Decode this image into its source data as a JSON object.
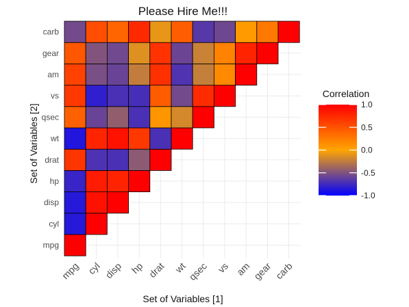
{
  "chart_data": {
    "type": "heatmap",
    "title": "Please Hire Me!!!",
    "xlabel": "Set of Variables [1]",
    "ylabel": "Set of Variables [2]",
    "variables": [
      "mpg",
      "cyl",
      "disp",
      "hp",
      "drat",
      "wt",
      "qsec",
      "vs",
      "am",
      "gear",
      "carb"
    ],
    "matrix": [
      [
        1.0,
        -0.85,
        -0.85,
        -0.78,
        0.68,
        -0.87,
        0.42,
        0.66,
        0.6,
        0.48,
        -0.55
      ],
      [
        -0.85,
        1.0,
        0.9,
        0.83,
        -0.7,
        0.78,
        -0.59,
        -0.81,
        -0.52,
        -0.49,
        0.53
      ],
      [
        -0.85,
        0.9,
        1.0,
        0.79,
        -0.71,
        0.89,
        -0.43,
        -0.71,
        -0.59,
        -0.56,
        0.39
      ],
      [
        -0.78,
        0.83,
        0.79,
        1.0,
        -0.45,
        0.66,
        -0.71,
        -0.72,
        -0.24,
        -0.13,
        0.75
      ],
      [
        0.68,
        -0.7,
        -0.71,
        -0.45,
        1.0,
        -0.71,
        0.09,
        0.44,
        0.71,
        0.7,
        -0.09
      ],
      [
        -0.87,
        0.78,
        0.89,
        0.66,
        -0.71,
        1.0,
        -0.17,
        -0.55,
        -0.69,
        -0.58,
        0.43
      ],
      [
        0.42,
        -0.59,
        -0.43,
        -0.71,
        0.09,
        -0.17,
        1.0,
        0.74,
        -0.23,
        -0.21,
        -0.66
      ],
      [
        0.66,
        -0.81,
        -0.71,
        -0.72,
        0.44,
        -0.55,
        0.74,
        1.0,
        0.17,
        0.21,
        -0.57
      ],
      [
        0.6,
        -0.52,
        -0.59,
        -0.24,
        0.71,
        -0.69,
        -0.23,
        0.17,
        1.0,
        0.79,
        0.06
      ],
      [
        0.48,
        -0.49,
        -0.56,
        -0.13,
        0.7,
        -0.58,
        -0.21,
        0.21,
        0.79,
        1.0,
        0.27
      ],
      [
        -0.55,
        0.53,
        0.39,
        0.75,
        -0.09,
        0.43,
        -0.66,
        -0.57,
        0.06,
        0.27,
        1.0
      ]
    ],
    "color_scale": {
      "low": "#0000FF",
      "mid": "#FFA500",
      "high": "#FF0000",
      "midpoint": 0.0,
      "limits": [
        -1,
        1
      ]
    },
    "legend": {
      "title": "Correlation",
      "placement": "right",
      "breaks": [
        1.0,
        0.5,
        0.0,
        -0.5,
        -1.0
      ],
      "labels": [
        "1.0",
        "0.5",
        "0.0",
        "-0.5",
        "-1.0"
      ]
    },
    "grid": true
  }
}
